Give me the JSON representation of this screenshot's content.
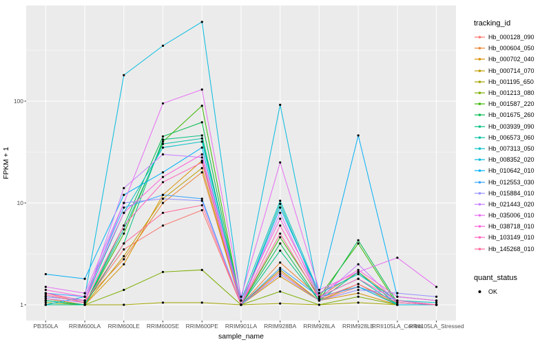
{
  "legend": {
    "title": "tracking_id"
  },
  "legend2": {
    "title": "quant_status",
    "items": [
      {
        "label": "OK"
      }
    ]
  },
  "chart_data": {
    "type": "line",
    "title": "",
    "xlabel": "sample_name",
    "ylabel": "FPKM + 1",
    "yscale": "log10",
    "yticks": [
      1,
      10,
      100
    ],
    "ylim": [
      0.93,
      870
    ],
    "grid": true,
    "legend_position": "right",
    "panel_bg": "#EBEBEB",
    "grid_color": "#FFFFFF",
    "point_color": "#000000",
    "categories": [
      "PB350LA",
      "RRIM600LA",
      "RRIM600LE",
      "RRIM600SE",
      "RRIM600PE",
      "RRIM901LA",
      "RRIM928BA",
      "RRIM928LA",
      "RRIM928LE",
      "RRII105LA_Control",
      "RRII105LA_Stressed"
    ],
    "series": [
      {
        "name": "Hb_000128_090",
        "color": "#F8766D",
        "values": [
          1.3,
          1.05,
          3.5,
          6,
          8.5,
          1,
          2.1,
          1.1,
          1.5,
          1,
          1
        ]
      },
      {
        "name": "Hb_000604_050",
        "color": "#EA8331",
        "values": [
          1.2,
          1.1,
          2.8,
          10,
          20,
          1,
          2.6,
          1.2,
          2.1,
          1.1,
          1
        ]
      },
      {
        "name": "Hb_000702_040",
        "color": "#D89000",
        "values": [
          1.15,
          1,
          2.5,
          12,
          26,
          1,
          1.9,
          1.1,
          1.3,
          1,
          1
        ]
      },
      {
        "name": "Hb_000714_070",
        "color": "#C09B00",
        "values": [
          1.1,
          1,
          3,
          11,
          22,
          1,
          2.2,
          1.1,
          1.6,
          1,
          1
        ]
      },
      {
        "name": "Hb_001195_650",
        "color": "#A3A500",
        "values": [
          1,
          1,
          1,
          1.05,
          1.05,
          1,
          1.03,
          1,
          1.05,
          1,
          1
        ]
      },
      {
        "name": "Hb_001213_080",
        "color": "#7CAE00",
        "values": [
          1.05,
          1,
          1.4,
          2.1,
          2.2,
          1,
          1.35,
          1,
          1.2,
          1,
          1
        ]
      },
      {
        "name": "Hb_001587_220",
        "color": "#39B600",
        "values": [
          1.1,
          1,
          5,
          40,
          90,
          1,
          4.6,
          1.2,
          4,
          1,
          1
        ]
      },
      {
        "name": "Hb_001675_260",
        "color": "#00BB4E",
        "values": [
          1.1,
          1,
          6,
          45,
          62,
          1,
          4,
          1.1,
          4.3,
          1.05,
          1
        ]
      },
      {
        "name": "Hb_003939_090",
        "color": "#00BF7D",
        "values": [
          1,
          1,
          4,
          42,
          46,
          1,
          3.4,
          1.1,
          2.1,
          1,
          1
        ]
      },
      {
        "name": "Hb_006573_060",
        "color": "#00C1A3",
        "values": [
          1.1,
          1,
          5.5,
          38,
          43,
          1,
          9.8,
          1.2,
          1.8,
          1,
          1
        ]
      },
      {
        "name": "Hb_007313_050",
        "color": "#00BFC4",
        "values": [
          1.2,
          1.1,
          8,
          35,
          40,
          1.1,
          10.5,
          1.3,
          2,
          1.1,
          1.05
        ]
      },
      {
        "name": "Hb_008352_020",
        "color": "#00BAE0",
        "values": [
          1,
          1.2,
          180,
          350,
          600,
          1.1,
          92,
          1.2,
          1.5,
          1,
          1
        ]
      },
      {
        "name": "Hb_010642_010",
        "color": "#00B0F6",
        "values": [
          2,
          1.8,
          12,
          20,
          35,
          1,
          9,
          1.3,
          46,
          1.2,
          1.1
        ]
      },
      {
        "name": "Hb_012553_030",
        "color": "#35A2FF",
        "values": [
          1.3,
          1.2,
          9,
          12,
          11,
          1,
          2.3,
          1.2,
          1.5,
          1.1,
          1
        ]
      },
      {
        "name": "Hb_015884_010",
        "color": "#9590FF",
        "values": [
          1.2,
          1.1,
          10,
          11,
          10.5,
          1,
          2,
          1.1,
          1.4,
          1.3,
          1.2
        ]
      },
      {
        "name": "Hb_021443_020",
        "color": "#C77CFF",
        "values": [
          1.15,
          1.05,
          14,
          30,
          28,
          1,
          8,
          1.15,
          2.5,
          1.05,
          1
        ]
      },
      {
        "name": "Hb_035006_010",
        "color": "#E76BF3",
        "values": [
          1.5,
          1.3,
          10,
          95,
          130,
          1.2,
          25,
          1.4,
          2.1,
          2.9,
          1.5
        ]
      },
      {
        "name": "Hb_038718_010",
        "color": "#FA62DB",
        "values": [
          1.4,
          1.2,
          8,
          18,
          30,
          1.1,
          7,
          1.3,
          2.2,
          1.2,
          1.1
        ]
      },
      {
        "name": "Hb_103149_010",
        "color": "#FF62BC",
        "values": [
          1.3,
          1.1,
          6,
          16,
          25,
          1,
          6,
          1.2,
          1.8,
          1.1,
          1
        ]
      },
      {
        "name": "Hb_145268_010",
        "color": "#FF6A98",
        "values": [
          1.25,
          1.05,
          4,
          8,
          9.5,
          1,
          5,
          1.15,
          1.6,
          1.05,
          1
        ]
      }
    ]
  }
}
